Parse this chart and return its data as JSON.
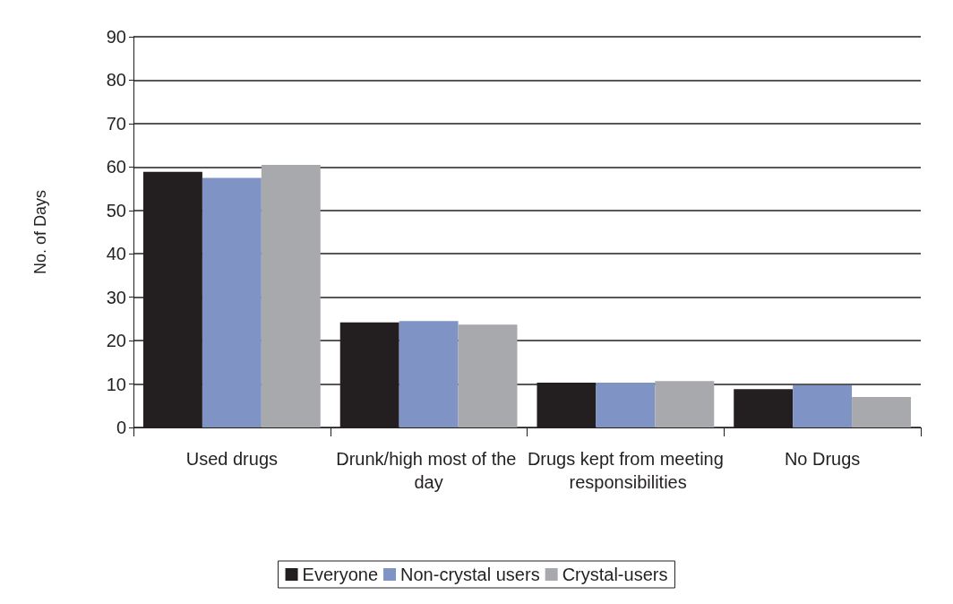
{
  "chart_data": {
    "type": "bar",
    "ylabel": "No. of Days",
    "categories": [
      "Used drugs",
      "Drunk/high most of the day",
      "Drugs kept from meeting responsibilities",
      "No Drugs"
    ],
    "series": [
      {
        "name": "Everyone",
        "color": "#231f20",
        "values": [
          58.9,
          24.2,
          10.3,
          8.8
        ]
      },
      {
        "name": "Non-crystal users",
        "color": "#7f93c4",
        "values": [
          57.5,
          24.5,
          10.3,
          9.7
        ]
      },
      {
        "name": "Crystal-users",
        "color": "#a8a9ad",
        "values": [
          60.5,
          23.7,
          10.7,
          7.0
        ]
      }
    ],
    "ylim": [
      0,
      90
    ],
    "yticks": [
      0,
      10,
      20,
      30,
      40,
      50,
      60,
      70,
      80,
      90
    ],
    "grid": "y",
    "legend": "bottom"
  }
}
